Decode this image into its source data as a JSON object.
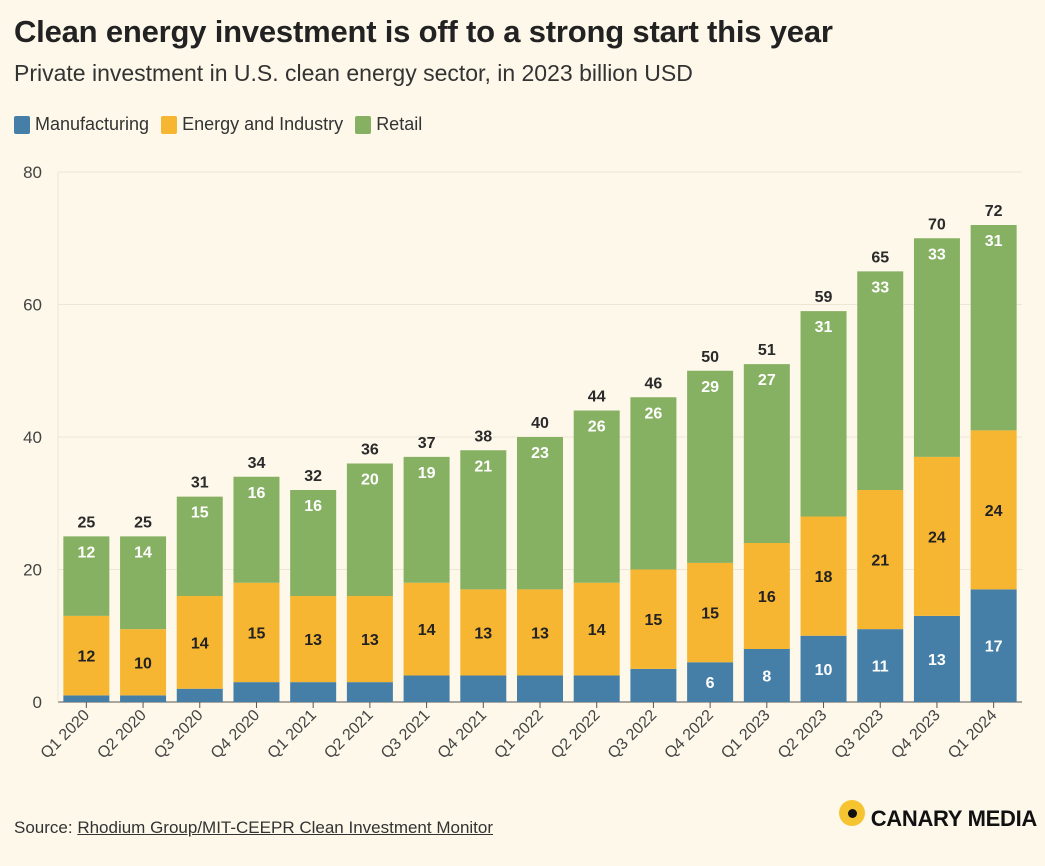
{
  "header": {
    "title": "Clean energy investment is off to a strong start this year",
    "subtitle": "Private investment in U.S. clean energy sector, in 2023 billion USD"
  },
  "legend": {
    "manufacturing": "Manufacturing",
    "energy_industry": "Energy and Industry",
    "retail": "Retail"
  },
  "colors": {
    "manufacturing": "#457fa8",
    "energy_industry": "#f6b632",
    "retail": "#86b062"
  },
  "footer": {
    "source_prefix": "Source: ",
    "source_link": "Rhodium Group/MIT-CEEPR Clean Investment Monitor",
    "brand": "CANARY MEDIA"
  },
  "chart_data": {
    "type": "bar",
    "stacked": true,
    "categories": [
      "Q1 2020",
      "Q2 2020",
      "Q3 2020",
      "Q4 2020",
      "Q1 2021",
      "Q2 2021",
      "Q3 2021",
      "Q4 2021",
      "Q1 2022",
      "Q2 2022",
      "Q3 2022",
      "Q4 2022",
      "Q1 2023",
      "Q2 2023",
      "Q3 2023",
      "Q4 2023",
      "Q1 2024"
    ],
    "series": [
      {
        "name": "Manufacturing",
        "values": [
          1,
          1,
          2,
          3,
          3,
          3,
          4,
          4,
          4,
          4,
          5,
          6,
          8,
          10,
          11,
          13,
          17
        ],
        "labels": [
          "",
          "",
          "",
          "",
          "",
          "",
          "",
          "",
          "",
          "",
          "",
          "6",
          "8",
          "10",
          "11",
          "13",
          "17"
        ]
      },
      {
        "name": "Energy and Industry",
        "values": [
          12,
          10,
          14,
          15,
          13,
          13,
          14,
          13,
          13,
          14,
          15,
          15,
          16,
          18,
          21,
          24,
          24
        ],
        "labels": [
          "12",
          "10",
          "14",
          "15",
          "13",
          "13",
          "14",
          "13",
          "13",
          "14",
          "15",
          "15",
          "16",
          "18",
          "21",
          "24",
          "24"
        ]
      },
      {
        "name": "Retail",
        "values": [
          12,
          14,
          15,
          16,
          16,
          20,
          19,
          21,
          23,
          26,
          26,
          29,
          27,
          31,
          33,
          33,
          31
        ],
        "labels": [
          "12",
          "14",
          "15",
          "16",
          "16",
          "20",
          "19",
          "21",
          "23",
          "26",
          "26",
          "29",
          "27",
          "31",
          "33",
          "33",
          "31"
        ]
      }
    ],
    "totals": [
      25,
      25,
      31,
      34,
      32,
      36,
      37,
      38,
      40,
      44,
      46,
      50,
      51,
      59,
      65,
      70,
      72
    ],
    "ylim": [
      0,
      80
    ],
    "yticks": [
      0,
      20,
      40,
      60,
      80
    ],
    "xlabel": "",
    "ylabel": "",
    "grid": true,
    "legend_position": "top-left"
  }
}
